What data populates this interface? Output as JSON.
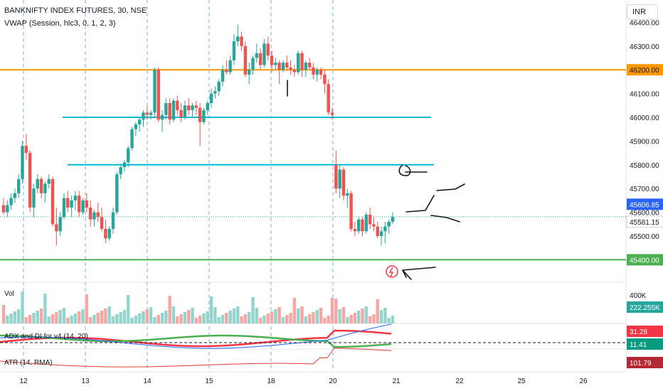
{
  "header": {
    "title": "BANKNIFTY INDEX FUTURES, 30, NSE",
    "indicator": "VWAP (Session, hlc3, 0, 1, 2, 3)"
  },
  "currency_button": "INR",
  "price_axis": {
    "ticks": [
      "46400.00",
      "46300.00",
      "46200.00",
      "46100.00",
      "46000.00",
      "45900.00",
      "45800.00",
      "45700.00",
      "45600.00",
      "45500.00",
      "45400.00"
    ],
    "labels": [
      {
        "text": "46200.00",
        "bg": "#ff9800",
        "fg": "#131722"
      },
      {
        "text": "45606.85",
        "bg": "#2962ff",
        "fg": "#ffffff"
      },
      {
        "text": "45581.15",
        "bg": "#ffffff",
        "fg": "#131722"
      },
      {
        "text": "45400.00",
        "bg": "#4caf50",
        "fg": "#ffffff"
      }
    ]
  },
  "volume_pane": {
    "label": "Vol",
    "scale_tick": "400K",
    "value_label": {
      "text": "222.255K",
      "bg": "#26a69a",
      "fg": "#ffffff"
    }
  },
  "adx_pane": {
    "label": "ADX and DI for v4 (14, 20)",
    "labels": [
      {
        "text": "31.28",
        "bg": "#f23645",
        "fg": "#ffffff"
      },
      {
        "text": "11.41",
        "bg": "#089981",
        "fg": "#ffffff"
      }
    ]
  },
  "atr_pane": {
    "label": "ATR (14, RMA)",
    "value_label": {
      "text": "101.79",
      "bg": "#b22833",
      "fg": "#ffffff"
    }
  },
  "time_axis": [
    "12",
    "13",
    "14",
    "15",
    "18",
    "20",
    "21",
    "22",
    "25",
    "26"
  ],
  "colors": {
    "up": "#26a69a",
    "down": "#ef5350",
    "orange_line": "#ff9800",
    "cyan_line": "#00bcd4",
    "green_line": "#4caf50"
  },
  "icons": {
    "flash": "lightning-icon"
  },
  "chart_data": {
    "type": "candlestick",
    "horizontal_levels": [
      46200,
      46000,
      45800,
      45400
    ],
    "last_price": 45581.15,
    "indicator_values": {
      "volume": "222.255K",
      "adx": 31.28,
      "di": 11.41,
      "atr": 101.79
    },
    "ohlc": [
      [
        45630,
        45660,
        45590,
        45600
      ],
      [
        45600,
        45650,
        45580,
        45630
      ],
      [
        45630,
        45680,
        45610,
        45660
      ],
      [
        45660,
        45700,
        45640,
        45680
      ],
      [
        45680,
        45760,
        45660,
        45740
      ],
      [
        45740,
        45900,
        45720,
        45880
      ],
      [
        45880,
        45930,
        45820,
        45850
      ],
      [
        45850,
        45860,
        45600,
        45620
      ],
      [
        45620,
        45720,
        45580,
        45700
      ],
      [
        45700,
        45760,
        45680,
        45740
      ],
      [
        45740,
        45750,
        45660,
        45680
      ],
      [
        45680,
        45730,
        45640,
        45720
      ],
      [
        45720,
        45760,
        45700,
        45740
      ],
      [
        45740,
        45750,
        45540,
        45550
      ],
      [
        45550,
        45620,
        45460,
        45520
      ],
      [
        45520,
        45600,
        45500,
        45580
      ],
      [
        45580,
        45680,
        45570,
        45660
      ],
      [
        45660,
        45690,
        45600,
        45620
      ],
      [
        45620,
        45670,
        45580,
        45650
      ],
      [
        45650,
        45690,
        45610,
        45670
      ],
      [
        45670,
        45690,
        45580,
        45600
      ],
      [
        45600,
        45660,
        45590,
        45650
      ],
      [
        45650,
        45680,
        45600,
        45620
      ],
      [
        45620,
        45650,
        45540,
        45570
      ],
      [
        45570,
        45610,
        45540,
        45600
      ],
      [
        45600,
        45640,
        45560,
        45580
      ],
      [
        45580,
        45620,
        45520,
        45530
      ],
      [
        45530,
        45570,
        45470,
        45490
      ],
      [
        45490,
        45540,
        45480,
        45530
      ],
      [
        45530,
        45620,
        45510,
        45600
      ],
      [
        45600,
        45770,
        45590,
        45760
      ],
      [
        45760,
        45800,
        45740,
        45790
      ],
      [
        45790,
        45820,
        45770,
        45810
      ],
      [
        45810,
        45880,
        45790,
        45870
      ],
      [
        45870,
        45960,
        45860,
        45950
      ],
      [
        45950,
        45980,
        45920,
        45970
      ],
      [
        45970,
        46000,
        45940,
        45990
      ],
      [
        45990,
        46030,
        45960,
        46020
      ],
      [
        46020,
        46050,
        45990,
        46010
      ],
      [
        46010,
        46030,
        45990,
        46020
      ],
      [
        46020,
        46210,
        46000,
        46200
      ],
      [
        46200,
        46210,
        45980,
        45990
      ],
      [
        45990,
        46030,
        45940,
        46010
      ],
      [
        46010,
        46080,
        45990,
        46060
      ],
      [
        46060,
        46080,
        45970,
        45990
      ],
      [
        45990,
        46080,
        45980,
        46070
      ],
      [
        46070,
        46090,
        46010,
        46030
      ],
      [
        46030,
        46060,
        45980,
        46000
      ],
      [
        46000,
        46070,
        45990,
        46050
      ],
      [
        46050,
        46080,
        46010,
        46030
      ],
      [
        46030,
        46060,
        46000,
        46050
      ],
      [
        46050,
        46070,
        46010,
        46040
      ],
      [
        46040,
        46060,
        45880,
        45980
      ],
      [
        45980,
        46040,
        45970,
        46030
      ],
      [
        46030,
        46070,
        46010,
        46060
      ],
      [
        46060,
        46120,
        46040,
        46100
      ],
      [
        46100,
        46130,
        46080,
        46110
      ],
      [
        46110,
        46160,
        46090,
        46150
      ],
      [
        46150,
        46220,
        46130,
        46200
      ],
      [
        46200,
        46240,
        46180,
        46190
      ],
      [
        46190,
        46260,
        46180,
        46240
      ],
      [
        46240,
        46350,
        46220,
        46320
      ],
      [
        46320,
        46390,
        46300,
        46340
      ],
      [
        46340,
        46360,
        46280,
        46300
      ],
      [
        46300,
        46320,
        46170,
        46180
      ],
      [
        46180,
        46230,
        46140,
        46200
      ],
      [
        46200,
        46260,
        46180,
        46250
      ],
      [
        46250,
        46310,
        46230,
        46270
      ],
      [
        46270,
        46290,
        46200,
        46220
      ],
      [
        46220,
        46330,
        46210,
        46310
      ],
      [
        46310,
        46340,
        46240,
        46260
      ],
      [
        46260,
        46280,
        46190,
        46220
      ],
      [
        46220,
        46250,
        46200,
        46230
      ],
      [
        46230,
        46240,
        46140,
        46200
      ],
      [
        46200,
        46240,
        46190,
        46230
      ],
      [
        46230,
        46260,
        46200,
        46210
      ],
      [
        46210,
        46240,
        46180,
        46200
      ],
      [
        46200,
        46220,
        46170,
        46190
      ],
      [
        46190,
        46280,
        46180,
        46270
      ],
      [
        46270,
        46280,
        46170,
        46200
      ],
      [
        46200,
        46240,
        46170,
        46230
      ],
      [
        46230,
        46250,
        46200,
        46210
      ],
      [
        46210,
        46230,
        46160,
        46180
      ],
      [
        46180,
        46210,
        46150,
        46200
      ],
      [
        46200,
        46210,
        46160,
        46180
      ],
      [
        46180,
        46200,
        46100,
        46140
      ],
      [
        46140,
        46160,
        46010,
        46020
      ],
      [
        46020,
        46040,
        45990,
        46010
      ],
      [
        45800,
        45860,
        45680,
        45700
      ],
      [
        45700,
        45800,
        45660,
        45780
      ],
      [
        45780,
        45790,
        45650,
        45670
      ],
      [
        45670,
        45700,
        45620,
        45680
      ],
      [
        45680,
        45690,
        45520,
        45530
      ],
      [
        45530,
        45560,
        45500,
        45520
      ],
      [
        45520,
        45580,
        45510,
        45570
      ],
      [
        45570,
        45580,
        45500,
        45520
      ],
      [
        45520,
        45600,
        45510,
        45590
      ],
      [
        45590,
        45620,
        45530,
        45550
      ],
      [
        45550,
        45580,
        45520,
        45540
      ],
      [
        45540,
        45560,
        45490,
        45500
      ],
      [
        45500,
        45540,
        45460,
        45520
      ],
      [
        45520,
        45560,
        45470,
        45540
      ],
      [
        45540,
        45570,
        45510,
        45560
      ],
      [
        45560,
        45600,
        45550,
        45581.15
      ]
    ]
  }
}
